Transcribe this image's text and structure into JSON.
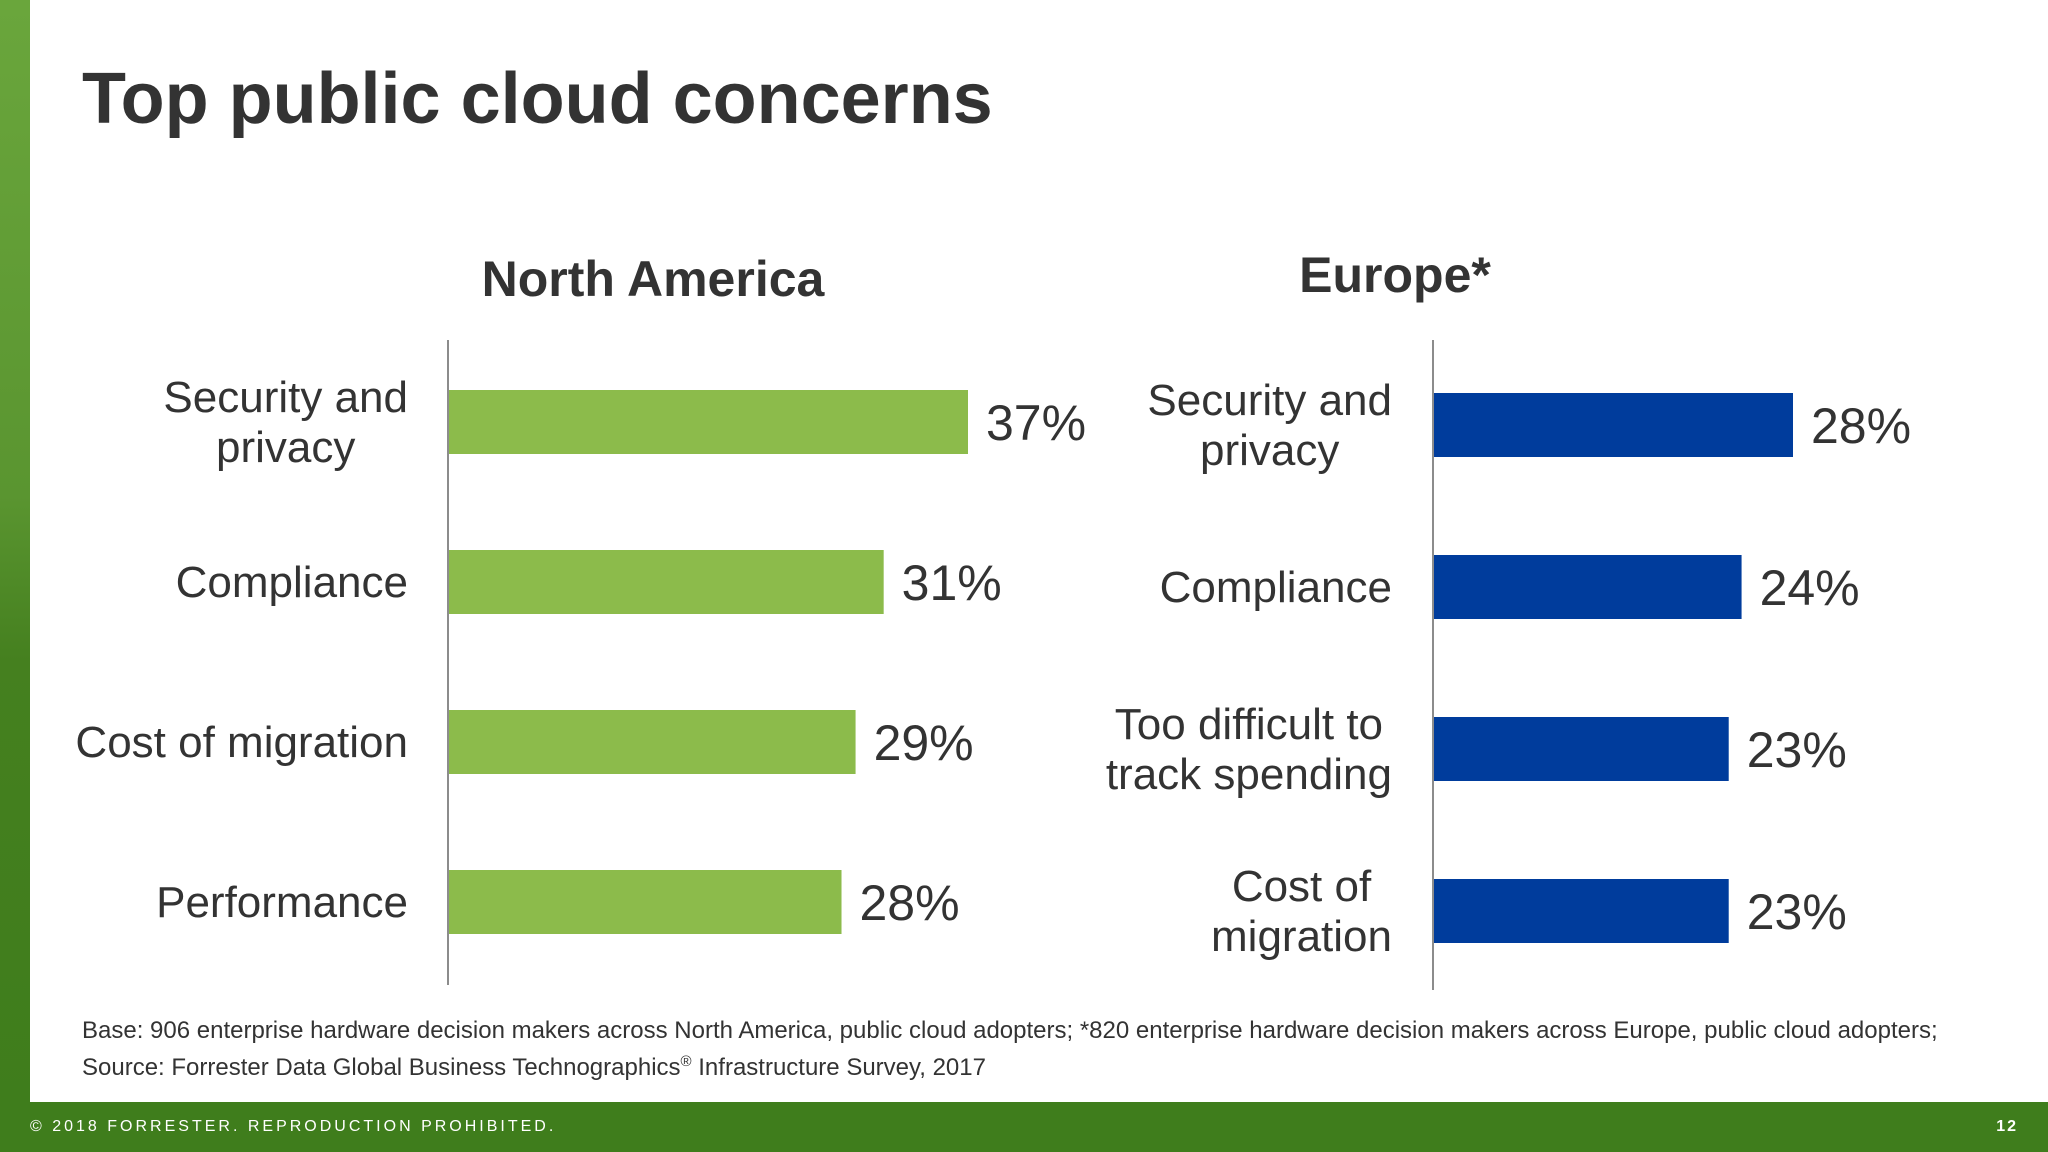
{
  "slide": {
    "title": "Top public cloud concerns",
    "footer_copyright": "© 2018 FORRESTER. REPRODUCTION PROHIBITED.",
    "page_number": "12",
    "footnote_part1": "Base: 906 enterprise hardware decision makers across North America, public cloud adopters; *820 enterprise hardware decision makers across Europe, public cloud adopters; Source: Forrester Data Global Business Technographics",
    "footnote_reg": "®",
    "footnote_part2": " Infrastructure Survey, 2017",
    "colors": {
      "brand_green": "#3f7d1c",
      "na_bar": "#8cbb4b",
      "eu_bar": "#003c9c"
    }
  },
  "chart_data": [
    {
      "type": "bar",
      "orientation": "horizontal",
      "title": "North America",
      "categories": [
        [
          "Security and",
          "privacy"
        ],
        [
          "Compliance"
        ],
        [
          "Cost of migration"
        ],
        [
          "Performance"
        ]
      ],
      "values": [
        37,
        31,
        29,
        28
      ],
      "value_labels": [
        "37%",
        "31%",
        "29%",
        "28%"
      ],
      "xlim": [
        0,
        37
      ],
      "color": "#8cbb4b",
      "grid": false
    },
    {
      "type": "bar",
      "orientation": "horizontal",
      "title": "Europe*",
      "categories": [
        [
          "Security and",
          "privacy"
        ],
        [
          "Compliance"
        ],
        [
          "Too difficult to",
          "track spending"
        ],
        [
          "Cost of",
          "migration"
        ]
      ],
      "values": [
        28,
        24,
        23,
        23
      ],
      "value_labels": [
        "28%",
        "24%",
        "23%",
        "23%"
      ],
      "xlim": [
        0,
        28
      ],
      "color": "#003c9c",
      "grid": false
    }
  ]
}
